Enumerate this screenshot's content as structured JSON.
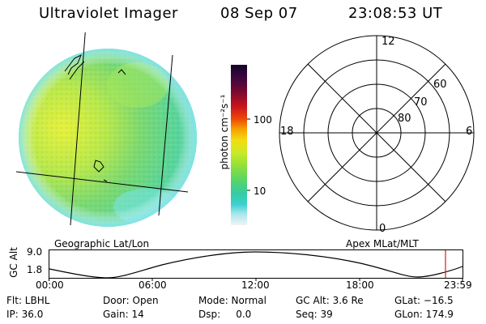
{
  "header": {
    "instrument": "Ultraviolet Imager",
    "date": "08 Sep 07",
    "time": "23:08:53 UT"
  },
  "colorbar": {
    "unit_label": "photon cm⁻²s⁻¹",
    "ticks": [
      "100",
      "10"
    ],
    "colors": [
      "#1a0530",
      "#3a0840",
      "#6a0a2a",
      "#a0102a",
      "#d01818",
      "#f06000",
      "#f59c00",
      "#f5d000",
      "#d4ec20",
      "#a0e030",
      "#60d860",
      "#38d090",
      "#28c8c0",
      "#80e0e8",
      "#c0ecf0",
      "#e8f4f6"
    ]
  },
  "left_panel": {
    "caption": "Geographic Lat/Lon"
  },
  "polar_panel": {
    "caption": "Apex MLat/MLT",
    "mlt_labels": {
      "top": "12",
      "bottom": "0",
      "left": "18",
      "right": "6"
    },
    "lat_labels": [
      "60",
      "70",
      "80"
    ]
  },
  "altitude_plot": {
    "ylabel": "GC Alt",
    "y_ticks": [
      "9.0",
      "1.8"
    ],
    "x_ticks": [
      "00:00",
      "06:00",
      "12:00",
      "18:00",
      "23:59"
    ]
  },
  "info": {
    "flt": "Flt: LBHL",
    "ip": "IP: 36.0",
    "door": "Door: Open",
    "gain": "Gain: 14",
    "mode": "Mode: Normal",
    "dsp": "Dsp:     0.0",
    "gcalt": "GC Alt: 3.6 Re",
    "seq": "Seq: 39",
    "glat": "GLat: −16.5",
    "glon": "GLon: 174.9"
  }
}
